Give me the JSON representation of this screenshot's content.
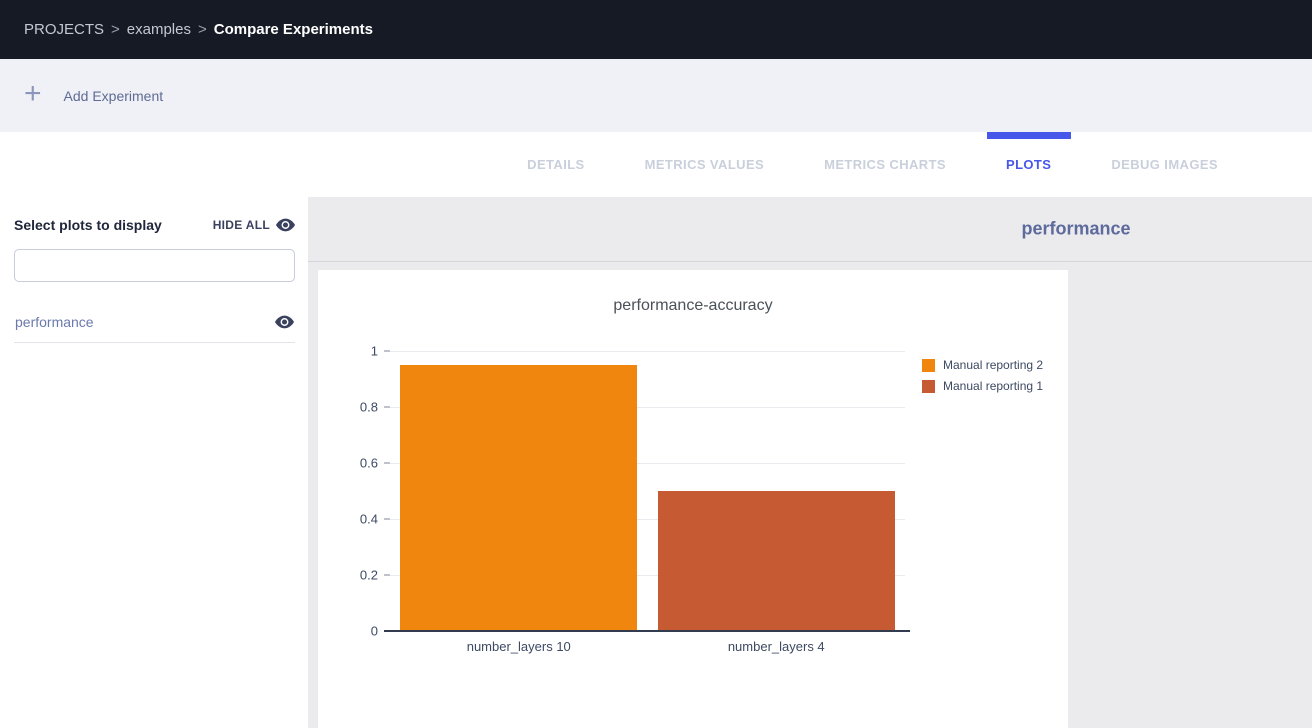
{
  "breadcrumb": {
    "items": [
      "PROJECTS",
      "examples",
      "Compare Experiments"
    ],
    "separator": ">"
  },
  "toolbar": {
    "add_experiment_label": "Add Experiment",
    "plus_icon": "+"
  },
  "tabs": {
    "items": [
      {
        "label": "DETAILS",
        "active": false
      },
      {
        "label": "METRICS VALUES",
        "active": false
      },
      {
        "label": "METRICS CHARTS",
        "active": false
      },
      {
        "label": "PLOTS",
        "active": true
      },
      {
        "label": "DEBUG IMAGES",
        "active": false
      }
    ]
  },
  "sidebar": {
    "title": "Select plots to display",
    "hide_all_label": "HIDE ALL",
    "search_value": "",
    "search_placeholder": "",
    "items": [
      {
        "label": "performance",
        "visible": true
      }
    ]
  },
  "main": {
    "group_title": "performance"
  },
  "colors": {
    "accent_blue": "#4757ea",
    "bar_orange": "#f1860e",
    "bar_brick": "#c65a32"
  },
  "chart_data": {
    "type": "bar",
    "title": "performance-accuracy",
    "categories": [
      "number_layers 10",
      "number_layers 4"
    ],
    "series": [
      {
        "name": "Manual reporting 2",
        "color": "#f1860e",
        "values": [
          0.95,
          null
        ]
      },
      {
        "name": "Manual reporting 1",
        "color": "#c65a32",
        "values": [
          null,
          0.5
        ]
      }
    ],
    "bars": [
      {
        "category": "number_layers 10",
        "value": 0.95,
        "series": "Manual reporting 2",
        "color": "#f1860e"
      },
      {
        "category": "number_layers 4",
        "value": 0.5,
        "series": "Manual reporting 1",
        "color": "#c65a32"
      }
    ],
    "xlabel": "",
    "ylabel": "",
    "ylim": [
      0,
      1
    ],
    "yticks": [
      0,
      0.2,
      0.4,
      0.6,
      0.8,
      1
    ],
    "grid": true,
    "legend_position": "right"
  }
}
